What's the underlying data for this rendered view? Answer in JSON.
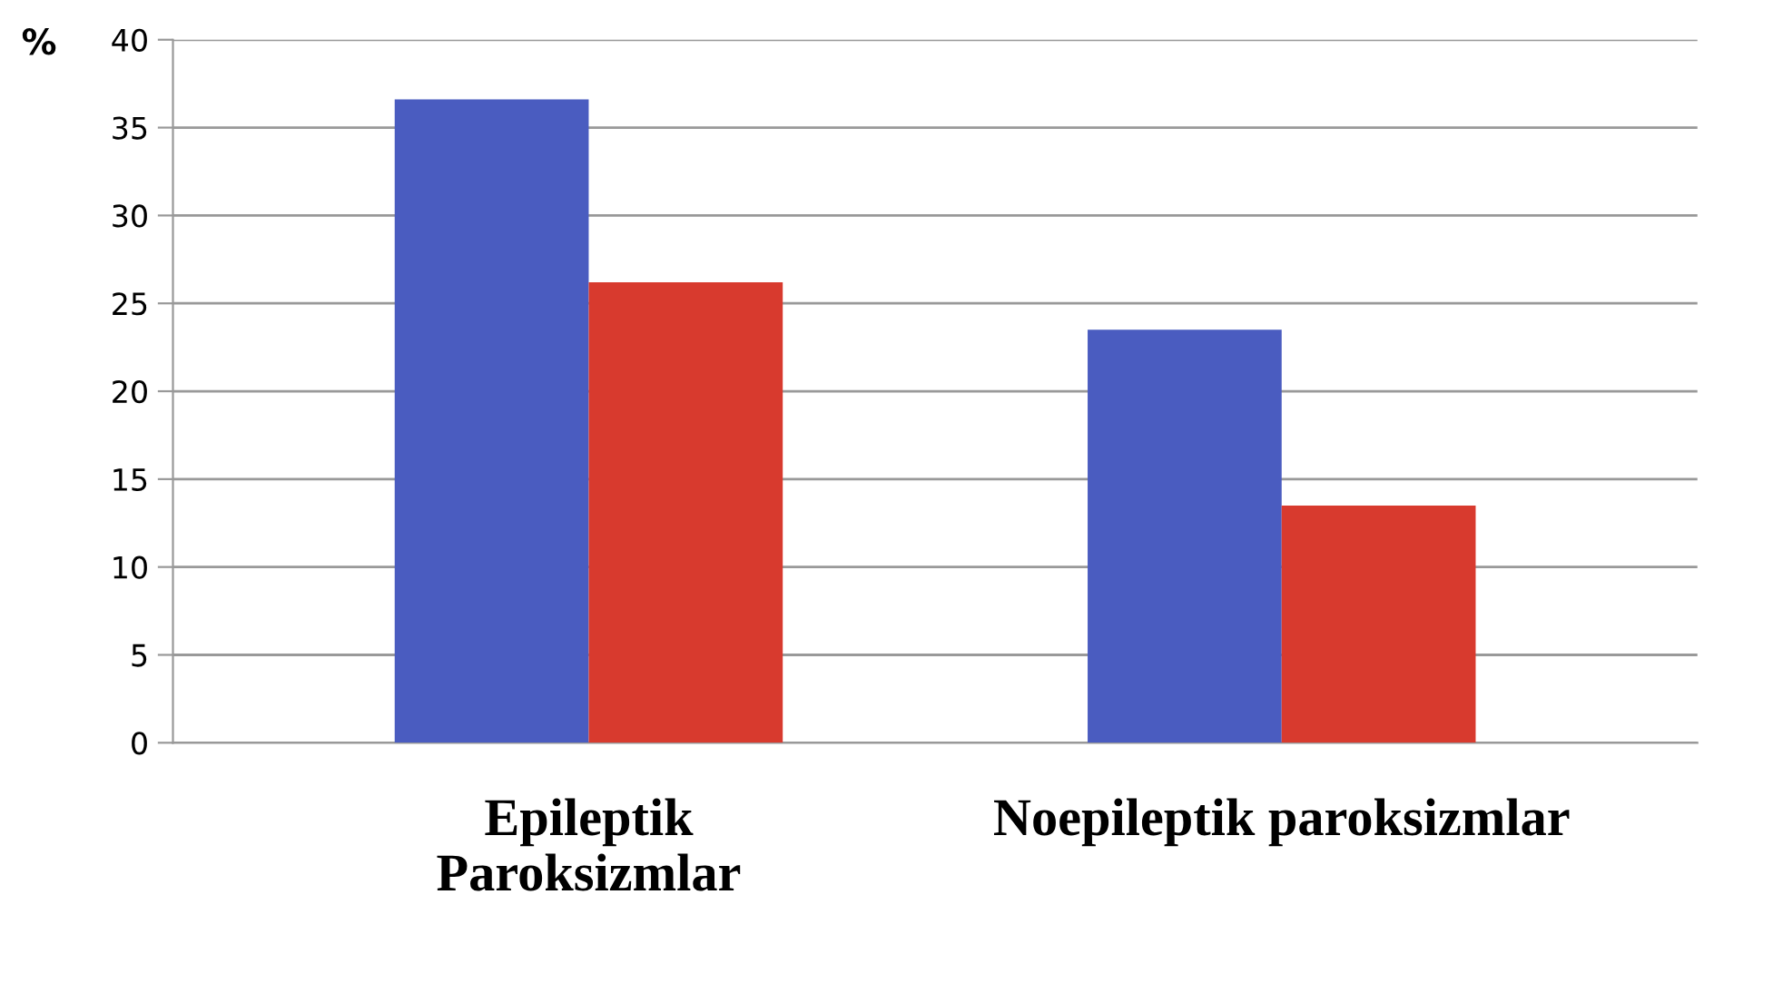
{
  "chart_data": {
    "type": "bar",
    "ylabel": "%",
    "categories": [
      "Epileptik\nParoksizmlar",
      "Noepileptik paroksizmlar"
    ],
    "series": [
      {
        "color": "#4a5cc0",
        "values": [
          36.6,
          23.5
        ]
      },
      {
        "color": "#d83a2e",
        "values": [
          26.2,
          13.5
        ]
      }
    ],
    "ylim": [
      0,
      40
    ],
    "yticks": [
      0,
      5,
      10,
      15,
      20,
      25,
      30,
      35,
      40
    ],
    "grid": "y",
    "legend": false
  }
}
